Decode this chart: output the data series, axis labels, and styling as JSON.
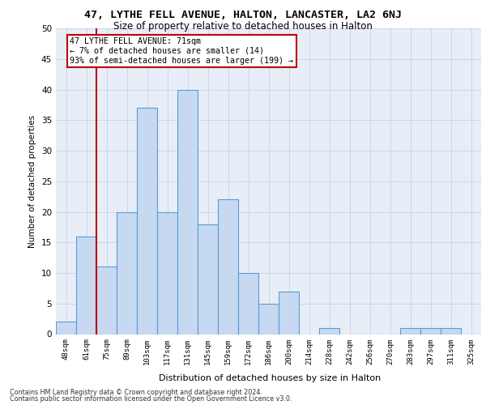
{
  "title1": "47, LYTHE FELL AVENUE, HALTON, LANCASTER, LA2 6NJ",
  "title2": "Size of property relative to detached houses in Halton",
  "xlabel": "Distribution of detached houses by size in Halton",
  "ylabel": "Number of detached properties",
  "categories": [
    "48sqm",
    "61sqm",
    "75sqm",
    "89sqm",
    "103sqm",
    "117sqm",
    "131sqm",
    "145sqm",
    "159sqm",
    "172sqm",
    "186sqm",
    "200sqm",
    "214sqm",
    "228sqm",
    "242sqm",
    "256sqm",
    "270sqm",
    "283sqm",
    "297sqm",
    "311sqm",
    "325sqm"
  ],
  "values": [
    2,
    16,
    11,
    20,
    37,
    20,
    40,
    18,
    22,
    10,
    5,
    7,
    0,
    1,
    0,
    0,
    0,
    1,
    1,
    1,
    0
  ],
  "bar_color": "#c6d9f1",
  "bar_edge_color": "#5b9bd5",
  "vline_x_idx": 1,
  "vline_color": "#c00000",
  "annotation_line1": "47 LYTHE FELL AVENUE: 71sqm",
  "annotation_line2": "← 7% of detached houses are smaller (14)",
  "annotation_line3": "93% of semi-detached houses are larger (199) →",
  "annotation_box_color": "#c00000",
  "annotation_box_bg": "#ffffff",
  "ylim": [
    0,
    50
  ],
  "yticks": [
    0,
    5,
    10,
    15,
    20,
    25,
    30,
    35,
    40,
    45,
    50
  ],
  "grid_color": "#ccd6e8",
  "bg_color": "#e8eef8",
  "footer1": "Contains HM Land Registry data © Crown copyright and database right 2024.",
  "footer2": "Contains public sector information licensed under the Open Government Licence v3.0."
}
